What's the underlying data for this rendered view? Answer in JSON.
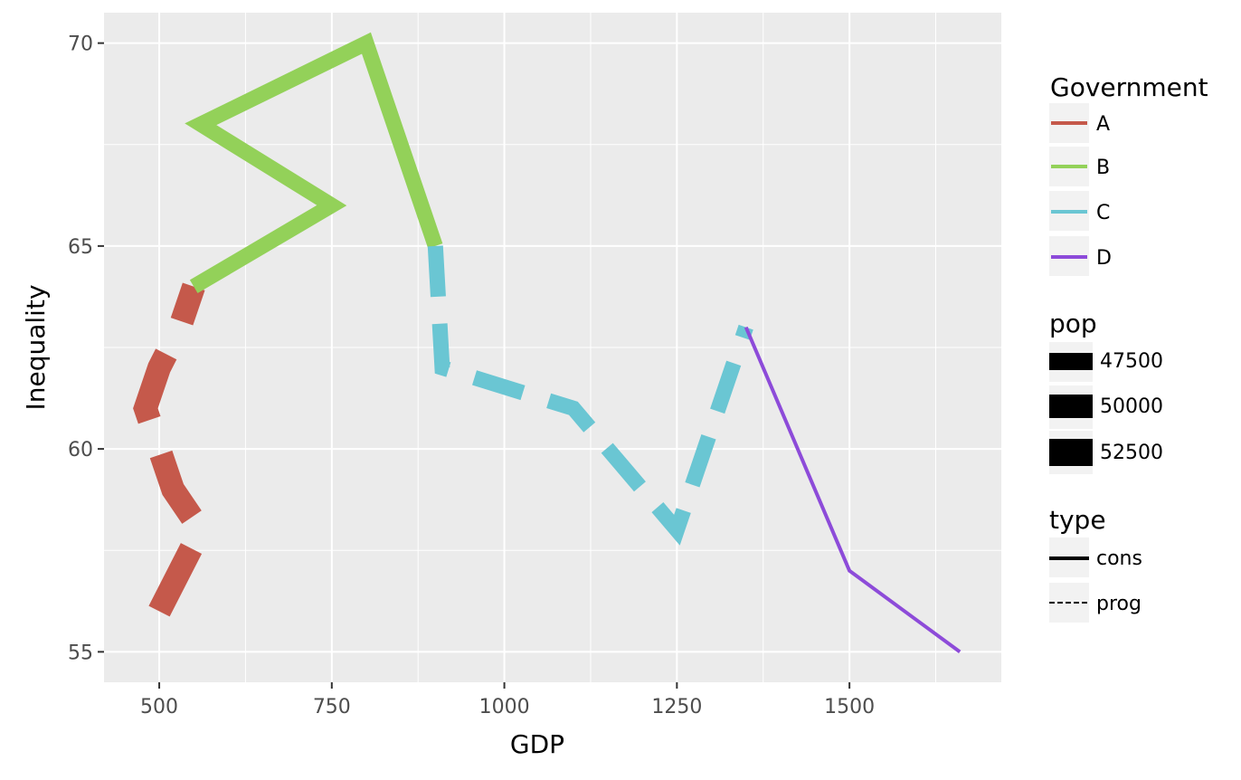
{
  "chart_data": {
    "type": "line",
    "title": "",
    "xlabel": "GDP",
    "ylabel": "Inequality",
    "xlim": [
      420,
      1720
    ],
    "ylim": [
      54.25,
      70.75
    ],
    "x_ticks": [
      500,
      750,
      1000,
      1250,
      1500
    ],
    "x_tick_labels": [
      "500",
      "750",
      "1000",
      "1250",
      "1500"
    ],
    "y_ticks": [
      55,
      60,
      65,
      70
    ],
    "y_tick_labels": [
      "55",
      "60",
      "65",
      "70"
    ],
    "grid": true,
    "legend_position": "right",
    "series": [
      {
        "name": "A",
        "color": "#C5594B",
        "type": "prog",
        "pop": 52500,
        "points": [
          [
            500,
            56
          ],
          [
            560,
            58
          ],
          [
            520,
            59
          ],
          [
            480,
            61
          ],
          [
            500,
            62
          ],
          [
            530,
            63
          ],
          [
            550,
            64
          ]
        ]
      },
      {
        "name": "B",
        "color": "#93D159",
        "type": "cons",
        "pop": 50000,
        "points": [
          [
            550,
            64
          ],
          [
            750,
            66
          ],
          [
            560,
            68
          ],
          [
            800,
            70
          ],
          [
            900,
            65
          ]
        ]
      },
      {
        "name": "C",
        "color": "#6AC6D3",
        "type": "prog",
        "pop": 50000,
        "points": [
          [
            900,
            65
          ],
          [
            910,
            62
          ],
          [
            1100,
            61
          ],
          [
            1250,
            58
          ],
          [
            1350,
            63
          ]
        ]
      },
      {
        "name": "D",
        "color": "#8D4BD9",
        "type": "cons",
        "pop": 47500,
        "points": [
          [
            1350,
            63
          ],
          [
            1500,
            57
          ],
          [
            1660,
            55
          ]
        ]
      }
    ],
    "legends": [
      {
        "title": "Government",
        "entries": [
          "A",
          "B",
          "C",
          "D"
        ]
      },
      {
        "title": "pop",
        "entries": [
          "47500",
          "50000",
          "52500"
        ]
      },
      {
        "title": "type",
        "entries": [
          "cons",
          "prog"
        ]
      }
    ]
  }
}
